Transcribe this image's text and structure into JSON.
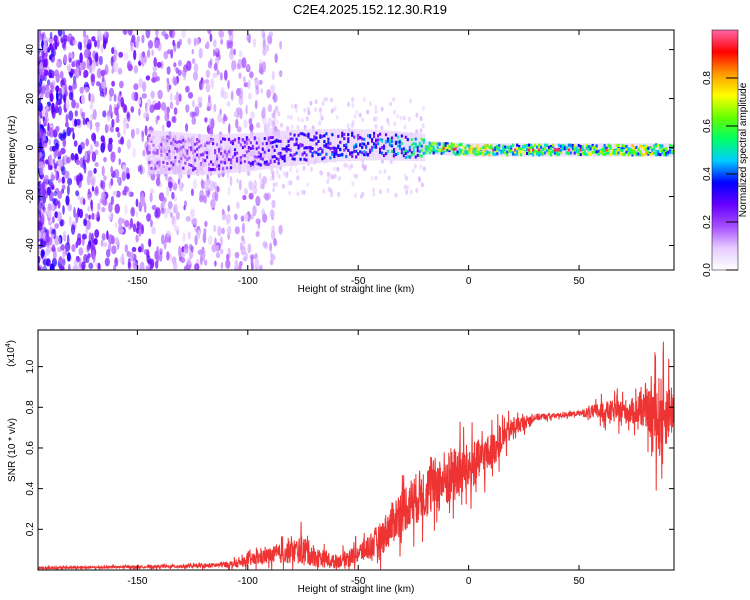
{
  "figure": {
    "title": "C2E4.2025.152.12.30.R19"
  },
  "chart_data": [
    {
      "type": "heatmap",
      "title": "C2E4.2025.152.12.30.R19",
      "xlabel": "Height of straight line (km)",
      "ylabel": "Frequency (Hz)",
      "xlim": [
        -195,
        93
      ],
      "ylim": [
        -50,
        48
      ],
      "xticks": [
        -150,
        -100,
        -50,
        0,
        50
      ],
      "yticks": [
        -40,
        -20,
        0,
        20,
        40
      ],
      "grid": false,
      "colorbar": {
        "label": "Normalized spectral amplitude",
        "range": [
          0,
          1
        ],
        "ticks": [
          0.0,
          0.2,
          0.4,
          0.6,
          0.8
        ],
        "colormap": [
          "#ffffff",
          "#e6ccff",
          "#a64dff",
          "#6600ff",
          "#0000ff",
          "#00ccff",
          "#00ff66",
          "#66ff00",
          "#ffff00",
          "#ff9900",
          "#ff0000",
          "#ff66aa"
        ]
      },
      "ridge": {
        "description_values": "dominant frequency band near 0 Hz",
        "points": [
          {
            "x": -140,
            "y": -2,
            "amp": 0.2
          },
          {
            "x": -120,
            "y": -3,
            "amp": 0.25
          },
          {
            "x": -100,
            "y": -2,
            "amp": 0.3
          },
          {
            "x": -80,
            "y": 0,
            "amp": 0.35
          },
          {
            "x": -60,
            "y": 1,
            "amp": 0.4
          },
          {
            "x": -40,
            "y": 1,
            "amp": 0.45
          },
          {
            "x": -20,
            "y": 0,
            "amp": 0.6
          },
          {
            "x": 0,
            "y": -1,
            "amp": 0.75
          },
          {
            "x": 20,
            "y": -1,
            "amp": 0.7
          },
          {
            "x": 40,
            "y": -1,
            "amp": 0.6
          },
          {
            "x": 60,
            "y": -1,
            "amp": 0.7
          },
          {
            "x": 80,
            "y": -1,
            "amp": 0.75
          },
          {
            "x": 93,
            "y": -1,
            "amp": 0.6
          }
        ]
      }
    },
    {
      "type": "line",
      "xlabel": "Height of straight line (km)",
      "ylabel": "SNR (10 * v/v)",
      "yexponent_label": "(x10",
      "yexponent_power": "4",
      "yexponent_close": ")",
      "xlim": [
        -195,
        93
      ],
      "ylim": [
        0.0,
        1.18
      ],
      "xticks": [
        -150,
        -100,
        -50,
        0,
        50
      ],
      "yticks": [
        0.2,
        0.4,
        0.6,
        0.8,
        1.0
      ],
      "grid": false,
      "series": [
        {
          "color": "#ee3333",
          "envelope": [
            {
              "x": -195,
              "base": 0.01,
              "noise": 0.01
            },
            {
              "x": -150,
              "base": 0.015,
              "noise": 0.01
            },
            {
              "x": -120,
              "base": 0.02,
              "noise": 0.015
            },
            {
              "x": -105,
              "base": 0.03,
              "noise": 0.03
            },
            {
              "x": -95,
              "base": 0.06,
              "noise": 0.06
            },
            {
              "x": -85,
              "base": 0.08,
              "noise": 0.08
            },
            {
              "x": -75,
              "base": 0.1,
              "noise": 0.12
            },
            {
              "x": -68,
              "base": 0.06,
              "noise": 0.08
            },
            {
              "x": -60,
              "base": 0.04,
              "noise": 0.05
            },
            {
              "x": -50,
              "base": 0.08,
              "noise": 0.08
            },
            {
              "x": -40,
              "base": 0.15,
              "noise": 0.14
            },
            {
              "x": -30,
              "base": 0.3,
              "noise": 0.2
            },
            {
              "x": -20,
              "base": 0.38,
              "noise": 0.22
            },
            {
              "x": -10,
              "base": 0.45,
              "noise": 0.25
            },
            {
              "x": 0,
              "base": 0.5,
              "noise": 0.2
            },
            {
              "x": 10,
              "base": 0.58,
              "noise": 0.15
            },
            {
              "x": 20,
              "base": 0.7,
              "noise": 0.08
            },
            {
              "x": 30,
              "base": 0.75,
              "noise": 0.03
            },
            {
              "x": 40,
              "base": 0.76,
              "noise": 0.02
            },
            {
              "x": 50,
              "base": 0.77,
              "noise": 0.02
            },
            {
              "x": 60,
              "base": 0.78,
              "noise": 0.08
            },
            {
              "x": 70,
              "base": 0.78,
              "noise": 0.1
            },
            {
              "x": 80,
              "base": 0.78,
              "noise": 0.12
            },
            {
              "x": 86,
              "base": 0.75,
              "noise": 0.35
            },
            {
              "x": 93,
              "base": 0.8,
              "noise": 0.2
            }
          ]
        }
      ]
    }
  ]
}
